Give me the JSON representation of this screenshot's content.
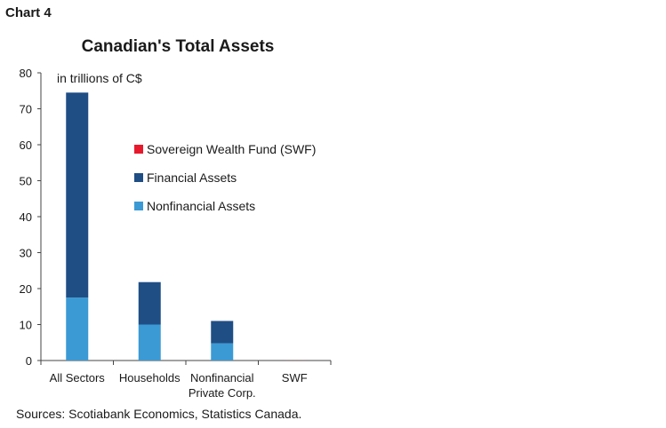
{
  "header": {
    "chart_number": "Chart 4"
  },
  "chart_data": {
    "type": "bar",
    "stacked": true,
    "title": "Canadian's Total Assets",
    "ylabel": "in trillions of C$",
    "xlabel": "",
    "ylim": [
      0,
      80
    ],
    "yticks": [
      0,
      10,
      20,
      30,
      40,
      50,
      60,
      70,
      80
    ],
    "categories": [
      [
        "All Sectors"
      ],
      [
        "Households"
      ],
      [
        "Nonfinancial",
        "Private Corp."
      ],
      [
        "SWF"
      ]
    ],
    "series": [
      {
        "name": "Nonfinancial Assets",
        "color": "#3b9ad4",
        "values": [
          17.5,
          10.0,
          4.8,
          0.0
        ]
      },
      {
        "name": "Financial Assets",
        "color": "#1f4e85",
        "values": [
          57.0,
          11.8,
          6.2,
          0.0
        ]
      },
      {
        "name": "Sovereign Wealth Fund (SWF)",
        "color": "#e8192c",
        "values": [
          0,
          0,
          0,
          0.02
        ]
      }
    ],
    "legend": {
      "position": "center",
      "entries": [
        {
          "label": "Sovereign Wealth Fund (SWF)",
          "color": "#e8192c"
        },
        {
          "label": "Financial Assets",
          "color": "#1f4e85"
        },
        {
          "label": "Nonfinancial Assets",
          "color": "#3b9ad4"
        }
      ]
    },
    "grid": false
  },
  "footer": {
    "source": "Sources: Scotiabank Economics, Statistics Canada."
  }
}
